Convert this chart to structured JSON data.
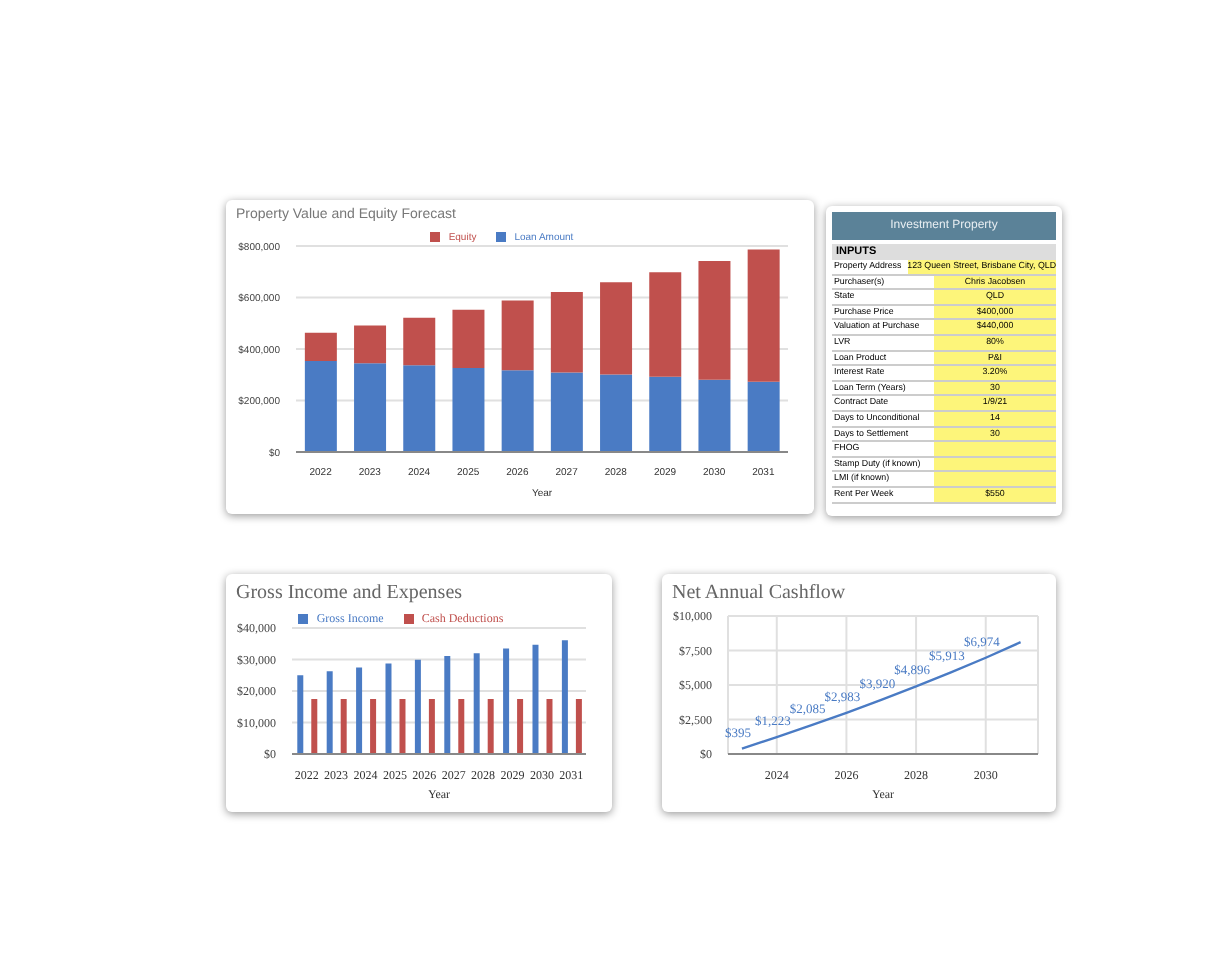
{
  "chart_data": [
    {
      "type": "bar",
      "title": "Property Value and Equity Forecast",
      "xlabel": "Year",
      "categories": [
        "2022",
        "2023",
        "2024",
        "2025",
        "2026",
        "2027",
        "2028",
        "2029",
        "2030",
        "2031"
      ],
      "stacked": true,
      "legend": "top",
      "grid": "y",
      "series": [
        {
          "name": "Loan Amount",
          "color": "#4a7bc4",
          "values": [
            353000,
            345000,
            337000,
            326000,
            317000,
            309000,
            301000,
            292000,
            281000,
            273000
          ]
        },
        {
          "name": "Equity",
          "color": "#c0504d",
          "values": [
            110000,
            146000,
            184000,
            226000,
            271000,
            312000,
            358000,
            406000,
            461000,
            513000
          ]
        }
      ],
      "ylim": [
        0,
        800000
      ],
      "yticks": [
        {
          "value": 0,
          "label": "$0"
        },
        {
          "value": 200000,
          "label": "$200,000"
        },
        {
          "value": 400000,
          "label": "$400,000"
        },
        {
          "value": 600000,
          "label": "$600,000"
        },
        {
          "value": 800000,
          "label": "$800,000"
        }
      ]
    },
    {
      "type": "other",
      "subtitle": "Investment Property",
      "legend_title": "INPUTS",
      "categories": [
        "Property Address",
        "Purchaser(s)",
        "State",
        "Purchase Price",
        "Valuation at Purchase",
        "LVR",
        "Loan Product",
        "Interest Rate",
        "Loan Term (Years)",
        "Contract Date",
        "Days to Unconditional",
        "Days to Settlement",
        "FHOG",
        "Stamp Duty (if known)",
        "LMI (if known)",
        "Rent Per Week"
      ],
      "value_labels": [
        "123 Queen Street, Brisbane City, QLD",
        "Chris Jacobsen",
        "QLD",
        "$400,000",
        "$440,000",
        "80%",
        "P&I",
        "3.20%",
        "30",
        "1/9/21",
        "14",
        "30",
        null,
        null,
        null,
        "$550"
      ]
    },
    {
      "type": "bar",
      "title": "Gross Income and Expenses",
      "xlabel": "Year",
      "categories": [
        "2022",
        "2023",
        "2024",
        "2025",
        "2026",
        "2027",
        "2028",
        "2029",
        "2030",
        "2031"
      ],
      "legend": "top",
      "grid": "y",
      "series": [
        {
          "name": "Gross Income",
          "color": "#4a7bc4",
          "values": [
            25000,
            26300,
            27500,
            28700,
            29900,
            31100,
            32000,
            33500,
            34700,
            36100
          ]
        },
        {
          "name": "Cash Deductions",
          "color": "#c0504d",
          "values": [
            17500,
            17500,
            17500,
            17500,
            17500,
            17500,
            17500,
            17500,
            17500,
            17500
          ]
        }
      ],
      "ylim": [
        0,
        40000
      ],
      "yticks": [
        {
          "value": 0,
          "label": "$0"
        },
        {
          "value": 10000,
          "label": "$10,000"
        },
        {
          "value": 20000,
          "label": "$20,000"
        },
        {
          "value": 30000,
          "label": "$30,000"
        },
        {
          "value": 40000,
          "label": "$40,000"
        }
      ]
    },
    {
      "type": "line",
      "title": "Net Annual Cashflow",
      "xlabel": "Year",
      "grid": true,
      "marker": "none",
      "x": [
        2023,
        2024,
        2025,
        2026,
        2027,
        2028,
        2029,
        2030,
        2031
      ],
      "series": [
        {
          "color": "#4a7bc4",
          "values": [
            395,
            1223,
            2085,
            2983,
            3920,
            4896,
            5913,
            6974,
            8100
          ],
          "value_labels": [
            "$395",
            "$1,223",
            "$2,085",
            "$2,983",
            "$3,920",
            "$4,896",
            "$5,913",
            "$6,974",
            null
          ]
        }
      ],
      "xlim": [
        2022.6,
        2031.5
      ],
      "xticks": [
        2024,
        2026,
        2028,
        2030
      ],
      "ylim": [
        0,
        10000
      ],
      "yticks": [
        {
          "value": 0,
          "label": "$0"
        },
        {
          "value": 2500,
          "label": "$2,500"
        },
        {
          "value": 5000,
          "label": "$5,000"
        },
        {
          "value": 7500,
          "label": "$7,500"
        },
        {
          "value": 10000,
          "label": "$10,000"
        }
      ]
    }
  ]
}
